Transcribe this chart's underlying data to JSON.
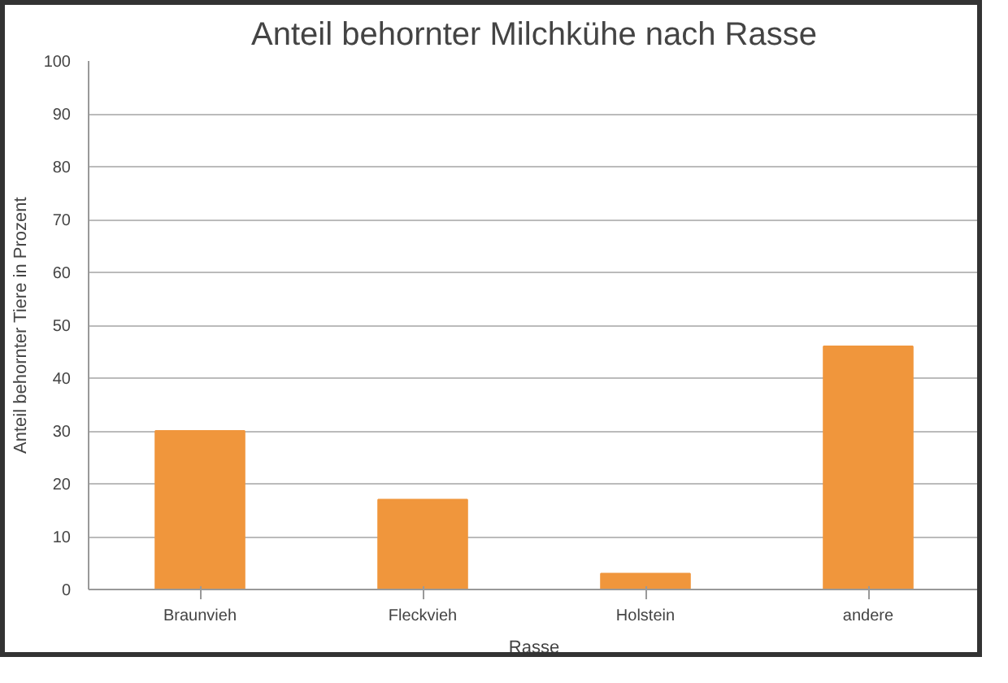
{
  "chart_data": {
    "type": "bar",
    "title": "Anteil behornter Milchkühe nach Rasse",
    "xlabel": "Rasse",
    "ylabel": "Anteil behornter Tiere in Prozent",
    "categories": [
      "Braunvieh",
      "Fleckvieh",
      "Holstein",
      "andere"
    ],
    "values": [
      30,
      17,
      3,
      46
    ],
    "color": "#f0963c",
    "ylim": [
      0,
      100
    ],
    "yticks": [
      0,
      10,
      20,
      30,
      40,
      50,
      60,
      70,
      80,
      90,
      100
    ],
    "grid": "y"
  }
}
